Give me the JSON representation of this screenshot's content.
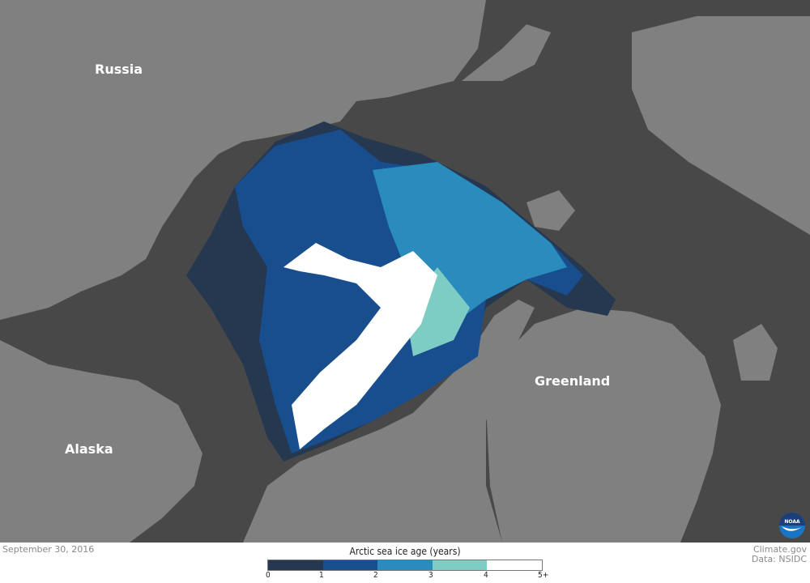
{
  "map": {
    "labels": {
      "russia": "Russia",
      "alaska": "Alaska",
      "greenland": "Greenland"
    },
    "colors": {
      "ocean": "#484848",
      "land": "#808080"
    }
  },
  "footer": {
    "date": "September 30, 2016",
    "credit": "Climate.gov",
    "source": "Data: NSIDC",
    "logo_text": "NOAA"
  },
  "legend": {
    "title": "Arctic sea ice age (years)",
    "bins": [
      {
        "range": "0-1",
        "color": "#253850"
      },
      {
        "range": "1-2",
        "color": "#184e8e"
      },
      {
        "range": "2-3",
        "color": "#2a8bbd"
      },
      {
        "range": "3-4",
        "color": "#7ecdc4"
      },
      {
        "range": "4-5+",
        "color": "#ffffff"
      }
    ],
    "ticks": [
      "0",
      "1",
      "2",
      "3",
      "4",
      "5+"
    ]
  }
}
